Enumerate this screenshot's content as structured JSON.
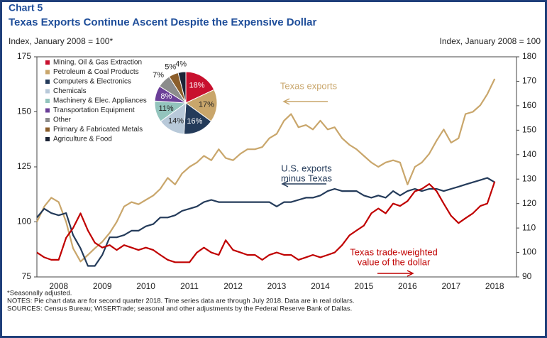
{
  "chart_data": [
    {
      "type": "line",
      "title": "Chart 5",
      "subtitle": "Texas Exports Continue Ascent Despite the Expensive Dollar",
      "ylabel": "Index, January 2008 = 100*",
      "y2label": "Index, January 2008 = 100",
      "xlim": [
        2008,
        2019
      ],
      "xticks": [
        {
          "value": 2008.5,
          "label": "2008"
        },
        {
          "value": 2009.5,
          "label": "2009"
        },
        {
          "value": 2010.5,
          "label": "2010"
        },
        {
          "value": 2011.5,
          "label": "2011"
        },
        {
          "value": 2012.5,
          "label": "2012"
        },
        {
          "value": 2013.5,
          "label": "2013"
        },
        {
          "value": 2014.5,
          "label": "2014"
        },
        {
          "value": 2015.5,
          "label": "2015"
        },
        {
          "value": 2016.5,
          "label": "2016"
        },
        {
          "value": 2017.5,
          "label": "2017"
        },
        {
          "value": 2018.5,
          "label": "2018"
        }
      ],
      "ylim": [
        75,
        175
      ],
      "yticks": [
        75,
        100,
        125,
        150,
        175
      ],
      "y2lim": [
        90,
        180
      ],
      "y2ticks": [
        90,
        100,
        110,
        120,
        130,
        140,
        150,
        160,
        170,
        180
      ],
      "x": [
        2008.0,
        2008.17,
        2008.33,
        2008.5,
        2008.67,
        2008.83,
        2009.0,
        2009.17,
        2009.33,
        2009.5,
        2009.67,
        2009.83,
        2010.0,
        2010.17,
        2010.33,
        2010.5,
        2010.67,
        2010.83,
        2011.0,
        2011.17,
        2011.33,
        2011.5,
        2011.67,
        2011.83,
        2012.0,
        2012.17,
        2012.33,
        2012.5,
        2012.67,
        2012.83,
        2013.0,
        2013.17,
        2013.33,
        2013.5,
        2013.67,
        2013.83,
        2014.0,
        2014.17,
        2014.33,
        2014.5,
        2014.67,
        2014.83,
        2015.0,
        2015.17,
        2015.33,
        2015.5,
        2015.67,
        2015.83,
        2016.0,
        2016.17,
        2016.33,
        2016.5,
        2016.67,
        2016.83,
        2017.0,
        2017.17,
        2017.33,
        2017.5,
        2017.67,
        2017.83,
        2018.0,
        2018.17,
        2018.33,
        2018.5
      ],
      "series": [
        {
          "name": [
            "Texas exports"
          ],
          "color": "#c9a66b",
          "axis": "y",
          "values": [
            100,
            107,
            111,
            109,
            100,
            88,
            82,
            85,
            88,
            91,
            95,
            100,
            107,
            109,
            108,
            110,
            112,
            115,
            120,
            117,
            122,
            125,
            127,
            130,
            128,
            133,
            129,
            128,
            131,
            133,
            133,
            134,
            138,
            140,
            146,
            149,
            143,
            144,
            142,
            146,
            142,
            143,
            138,
            135,
            133,
            130,
            127,
            125,
            127,
            128,
            127,
            117,
            125,
            127,
            131,
            137,
            142,
            136,
            138,
            149,
            150,
            153,
            158,
            165
          ]
        },
        {
          "name": [
            "U.S. exports",
            "minus Texas"
          ],
          "color": "#243b5a",
          "axis": "y",
          "values": [
            102,
            106,
            104,
            103,
            104,
            94,
            88,
            80,
            80,
            85,
            93,
            93,
            94,
            96,
            96,
            98,
            99,
            102,
            102,
            103,
            105,
            106,
            107,
            109,
            110,
            109,
            109,
            109,
            109,
            109,
            109,
            109,
            109,
            107,
            109,
            109,
            110,
            111,
            111,
            112,
            114,
            115,
            114,
            114,
            114,
            112,
            111,
            112,
            111,
            114,
            112,
            114,
            115,
            114,
            115,
            115,
            114,
            115,
            116,
            117,
            118,
            119,
            120,
            118
          ]
        },
        {
          "name": [
            "Texas trade-weighted",
            "value of the dollar"
          ],
          "color": "#c00000",
          "axis": "y2",
          "values": [
            100,
            98,
            97,
            97,
            106,
            110,
            116,
            109,
            104,
            102,
            103,
            101,
            103,
            102,
            101,
            102,
            101,
            99,
            97,
            96,
            96,
            96,
            100,
            102,
            100,
            99,
            105,
            101,
            100,
            99,
            99,
            97,
            99,
            100,
            99,
            99,
            97,
            98,
            99,
            98,
            99,
            100,
            103,
            107,
            109,
            111,
            116,
            118,
            116,
            120,
            119,
            121,
            125,
            126,
            128,
            125,
            120,
            115,
            112,
            114,
            116,
            119,
            120,
            129
          ]
        }
      ],
      "notes": [
        "*Seasonally adjusted.",
        "NOTES: Pie chart data are for second quarter 2018. Time series data are through July 2018. Data are in real dollars.",
        "SOURCES: Census Bureau; WISERTrade; seasonal and other adjustments by the Federal Reserve  Bank of Dallas."
      ]
    },
    {
      "type": "pie",
      "categories": [
        "Mining, Oil & Gas Extraction",
        "Petroleum & Coal Products",
        "Computers  & Electronics",
        "Chemicals",
        "Machinery & Elec. Appliances",
        "Transportation  Equipment",
        "Other",
        "Primary & Fabricated Metals",
        "Agriculture & Food"
      ],
      "values": [
        18,
        17,
        16,
        14,
        11,
        8,
        7,
        5,
        4
      ],
      "value_labels": [
        "18%",
        "17%",
        "16%",
        "14%",
        "11%",
        "8%",
        "7%",
        "5%",
        "4%"
      ],
      "colors": [
        "#c8102e",
        "#c9a66b",
        "#243b5a",
        "#b8c9d9",
        "#93c4bd",
        "#6b3f98",
        "#8c8c8c",
        "#8b5e2b",
        "#1c2436"
      ]
    }
  ]
}
